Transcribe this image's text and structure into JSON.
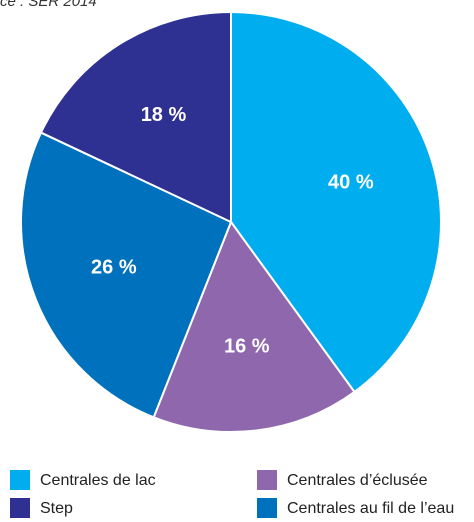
{
  "chart_data": {
    "type": "pie",
    "source": "ce : SER 2014",
    "categories": [
      "Centrales de lac",
      "Centrales d’éclusée",
      "Centrales au fil de l’eau",
      "Step"
    ],
    "values": [
      40,
      16,
      26,
      18
    ],
    "value_labels": [
      "40 %",
      "16 %",
      "26 %",
      "18 %"
    ],
    "colors": [
      "#00aeef",
      "#8e67ad",
      "#0071bc",
      "#2e3192"
    ]
  }
}
